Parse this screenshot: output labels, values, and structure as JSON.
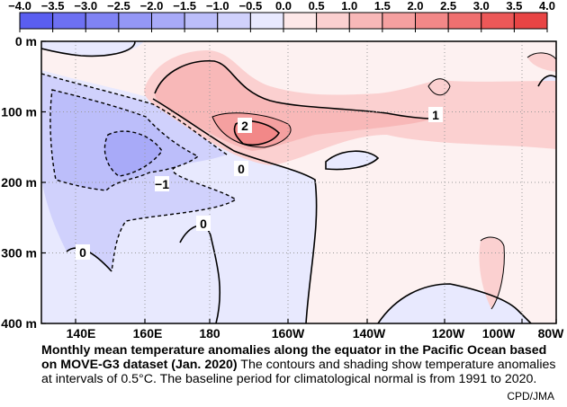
{
  "chart_data": {
    "type": "heatmap",
    "title": "",
    "colorbar": {
      "ticks": [
        "−4.0",
        "−3.5",
        "−3.0",
        "−2.5",
        "−2.0",
        "−1.5",
        "−1.0",
        "−0.5",
        "0.0",
        "0.5",
        "1.0",
        "1.5",
        "2.0",
        "2.5",
        "3.0",
        "3.5",
        "4.0"
      ],
      "colors": [
        "#5a5ef0",
        "#6d70f2",
        "#8083f4",
        "#9497f6",
        "#a8aaf8",
        "#bcbefa",
        "#d0d1fc",
        "#e8e9fe",
        "#fde8e8",
        "#fbd0d0",
        "#f8b8b8",
        "#f5a0a0",
        "#f28888",
        "#ef7070",
        "#ec5858",
        "#e84444"
      ],
      "placement": "top"
    },
    "x_ticks": [
      "140E",
      "160E",
      "180",
      "160W",
      "140W",
      "120W",
      "100W",
      "80W"
    ],
    "y_ticks": [
      "0 m",
      "100 m",
      "200 m",
      "300 m",
      "400 m"
    ],
    "ylim": [
      400,
      0
    ],
    "grid": "dotted",
    "contour_labels": [
      "2",
      "1",
      "0",
      "−1",
      "0",
      "0"
    ]
  },
  "caption": {
    "bold": "Monthly mean temperature anomalies along the equator in the Pacific Ocean based on MOVE-G3 dataset (Jan. 2020)",
    "text": " The contours and shading show temperature anomalies at intervals of 0.5°C.  The baseline period for climatological normal is from 1991 to 2020."
  },
  "credit": "CPD/JMA"
}
